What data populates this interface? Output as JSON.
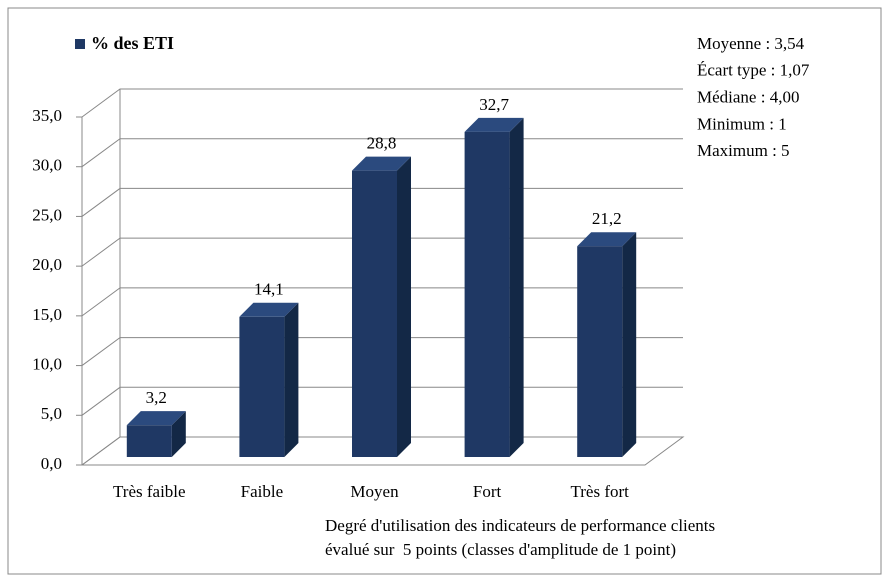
{
  "chart_data": {
    "type": "bar3d",
    "legend": "% des ETI",
    "categories": [
      "Très faible",
      "Faible",
      "Moyen",
      "Fort",
      "Très fort"
    ],
    "values": [
      3.2,
      14.1,
      28.8,
      32.7,
      21.2
    ],
    "value_labels": [
      "3,2",
      "14,1",
      "28,8",
      "32,7",
      "21,2"
    ],
    "color": "#1f3864",
    "ylim": [
      0,
      35
    ],
    "yticks": [
      {
        "value": 0,
        "label": "0,0"
      },
      {
        "value": 5,
        "label": "5,0"
      },
      {
        "value": 10,
        "label": "10,0"
      },
      {
        "value": 15,
        "label": "15,0"
      },
      {
        "value": 20,
        "label": "20,0"
      },
      {
        "value": 25,
        "label": "25,0"
      },
      {
        "value": 30,
        "label": "30,0"
      },
      {
        "value": 35,
        "label": "35,0"
      }
    ],
    "grid": true,
    "xlabel": [
      "Degré d'utilisation des indicateurs de performance clients",
      "évalué sur  5 points (classes d'amplitude de 1 point)"
    ],
    "annotations": [
      "Moyenne : 3,54",
      "Écart type : 1,07",
      "Médiane : 4,00",
      "Minimum : 1",
      "Maximum : 5"
    ]
  }
}
